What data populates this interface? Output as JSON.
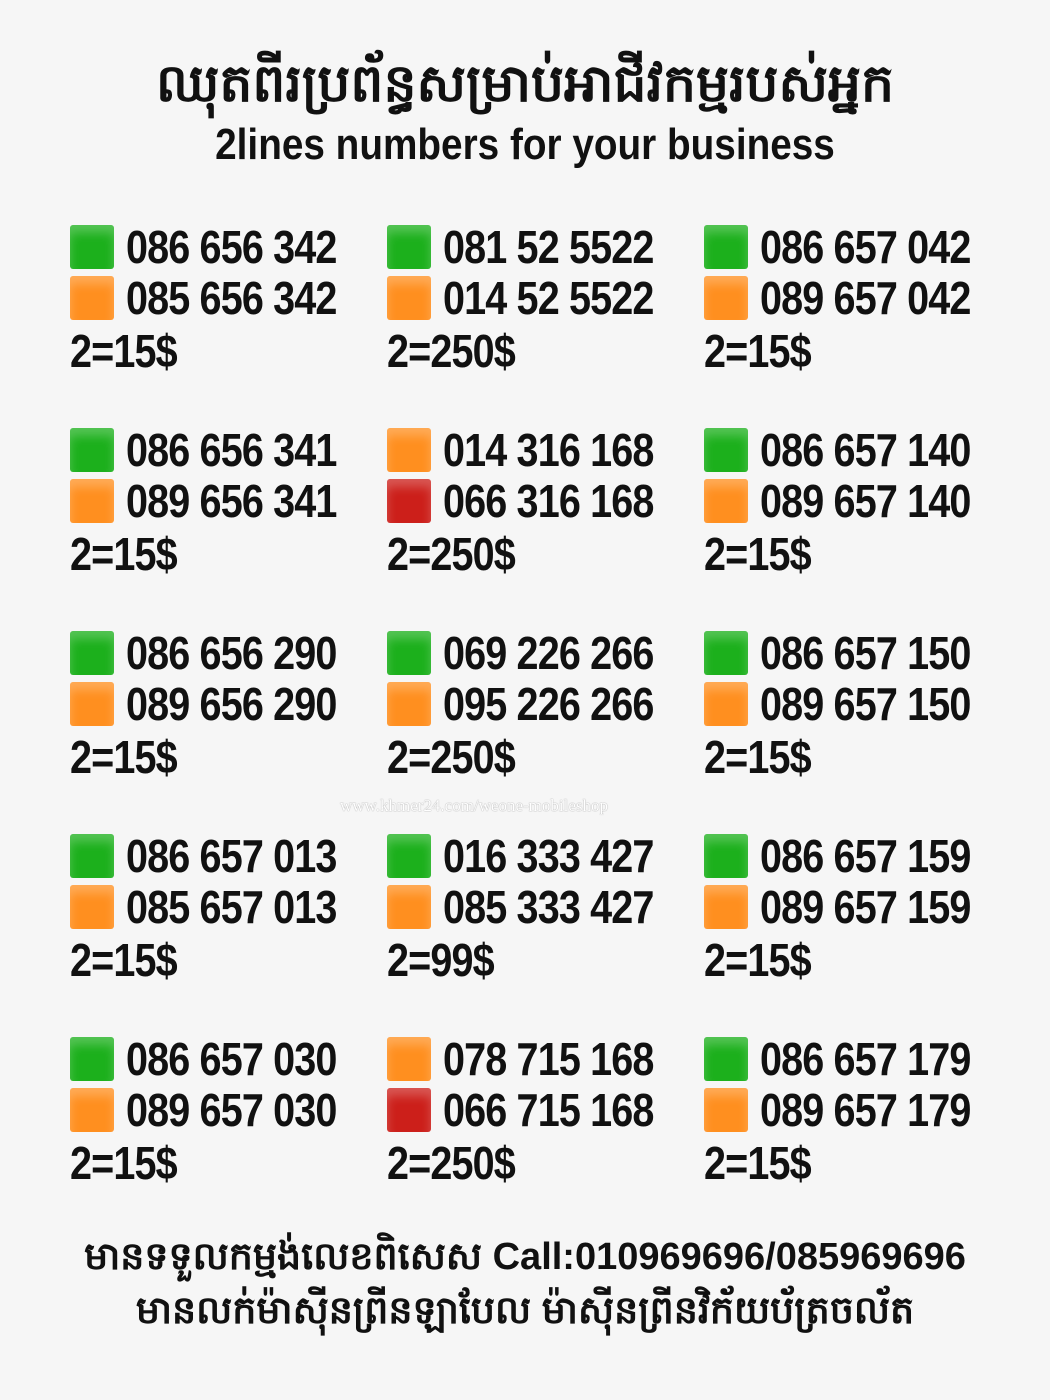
{
  "header": {
    "title_km": "ឈុតពីរប្រព័ន្ធសម្រាប់អាជីវកម្មរបស់អ្នក",
    "title_en": "2lines numbers for your business"
  },
  "colors": {
    "green": "#1cb01c",
    "orange": "#ff8f1f",
    "red": "#cc1f1a"
  },
  "blocks": [
    {
      "lines": [
        {
          "color": "green",
          "number": "086 656 342"
        },
        {
          "color": "orange",
          "number": "085 656 342"
        }
      ],
      "price": "2=15$"
    },
    {
      "lines": [
        {
          "color": "green",
          "number": "081 52 5522"
        },
        {
          "color": "orange",
          "number": "014 52 5522"
        }
      ],
      "price": "2=250$"
    },
    {
      "lines": [
        {
          "color": "green",
          "number": "086 657 042"
        },
        {
          "color": "orange",
          "number": "089 657 042"
        }
      ],
      "price": "2=15$"
    },
    {
      "lines": [
        {
          "color": "green",
          "number": "086 656 341"
        },
        {
          "color": "orange",
          "number": "089 656 341"
        }
      ],
      "price": "2=15$"
    },
    {
      "lines": [
        {
          "color": "orange",
          "number": "014 316 168"
        },
        {
          "color": "red",
          "number": "066 316 168"
        }
      ],
      "price": "2=250$"
    },
    {
      "lines": [
        {
          "color": "green",
          "number": "086 657 140"
        },
        {
          "color": "orange",
          "number": "089 657 140"
        }
      ],
      "price": "2=15$"
    },
    {
      "lines": [
        {
          "color": "green",
          "number": "086 656 290"
        },
        {
          "color": "orange",
          "number": "089 656 290"
        }
      ],
      "price": "2=15$"
    },
    {
      "lines": [
        {
          "color": "green",
          "number": "069 226 266"
        },
        {
          "color": "orange",
          "number": "095 226 266"
        }
      ],
      "price": "2=250$"
    },
    {
      "lines": [
        {
          "color": "green",
          "number": "086 657 150"
        },
        {
          "color": "orange",
          "number": "089 657 150"
        }
      ],
      "price": "2=15$"
    },
    {
      "lines": [
        {
          "color": "green",
          "number": "086 657 013"
        },
        {
          "color": "orange",
          "number": "085 657 013"
        }
      ],
      "price": "2=15$"
    },
    {
      "lines": [
        {
          "color": "green",
          "number": "016 333 427"
        },
        {
          "color": "orange",
          "number": "085 333 427"
        }
      ],
      "price": "2=99$"
    },
    {
      "lines": [
        {
          "color": "green",
          "number": "086 657 159"
        },
        {
          "color": "orange",
          "number": "089 657 159"
        }
      ],
      "price": "2=15$"
    },
    {
      "lines": [
        {
          "color": "green",
          "number": "086 657 030"
        },
        {
          "color": "orange",
          "number": "089 657 030"
        }
      ],
      "price": "2=15$"
    },
    {
      "lines": [
        {
          "color": "orange",
          "number": "078 715 168"
        },
        {
          "color": "red",
          "number": "066 715 168"
        }
      ],
      "price": "2=250$"
    },
    {
      "lines": [
        {
          "color": "green",
          "number": "086 657 179"
        },
        {
          "color": "orange",
          "number": "089 657 179"
        }
      ],
      "price": "2=15$"
    }
  ],
  "watermark": "www.khmer24.com/weone-mobileshop",
  "footer": {
    "line1": "មានទទួលកម្មង់លេខពិសេស Call:010969696/085969696",
    "line2": "មានលក់ម៉ាស៊ីនព្រីនឡាបែល ម៉ាស៊ីនព្រីនវិក័យប័ត្រចល័ត"
  }
}
